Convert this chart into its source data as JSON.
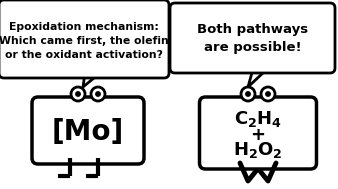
{
  "bg_color": "#ffffff",
  "left_bubble_text": "Epoxidation mechanism:\nWhich came first, the olefin\nor the oxidant activation?",
  "right_bubble_text": "Both pathways\nare possible!",
  "left_body_text": "[Mo]",
  "line_color": "#000000",
  "body_color": "#ffffff",
  "bubble_color": "#ffffff",
  "lw": 2.0
}
